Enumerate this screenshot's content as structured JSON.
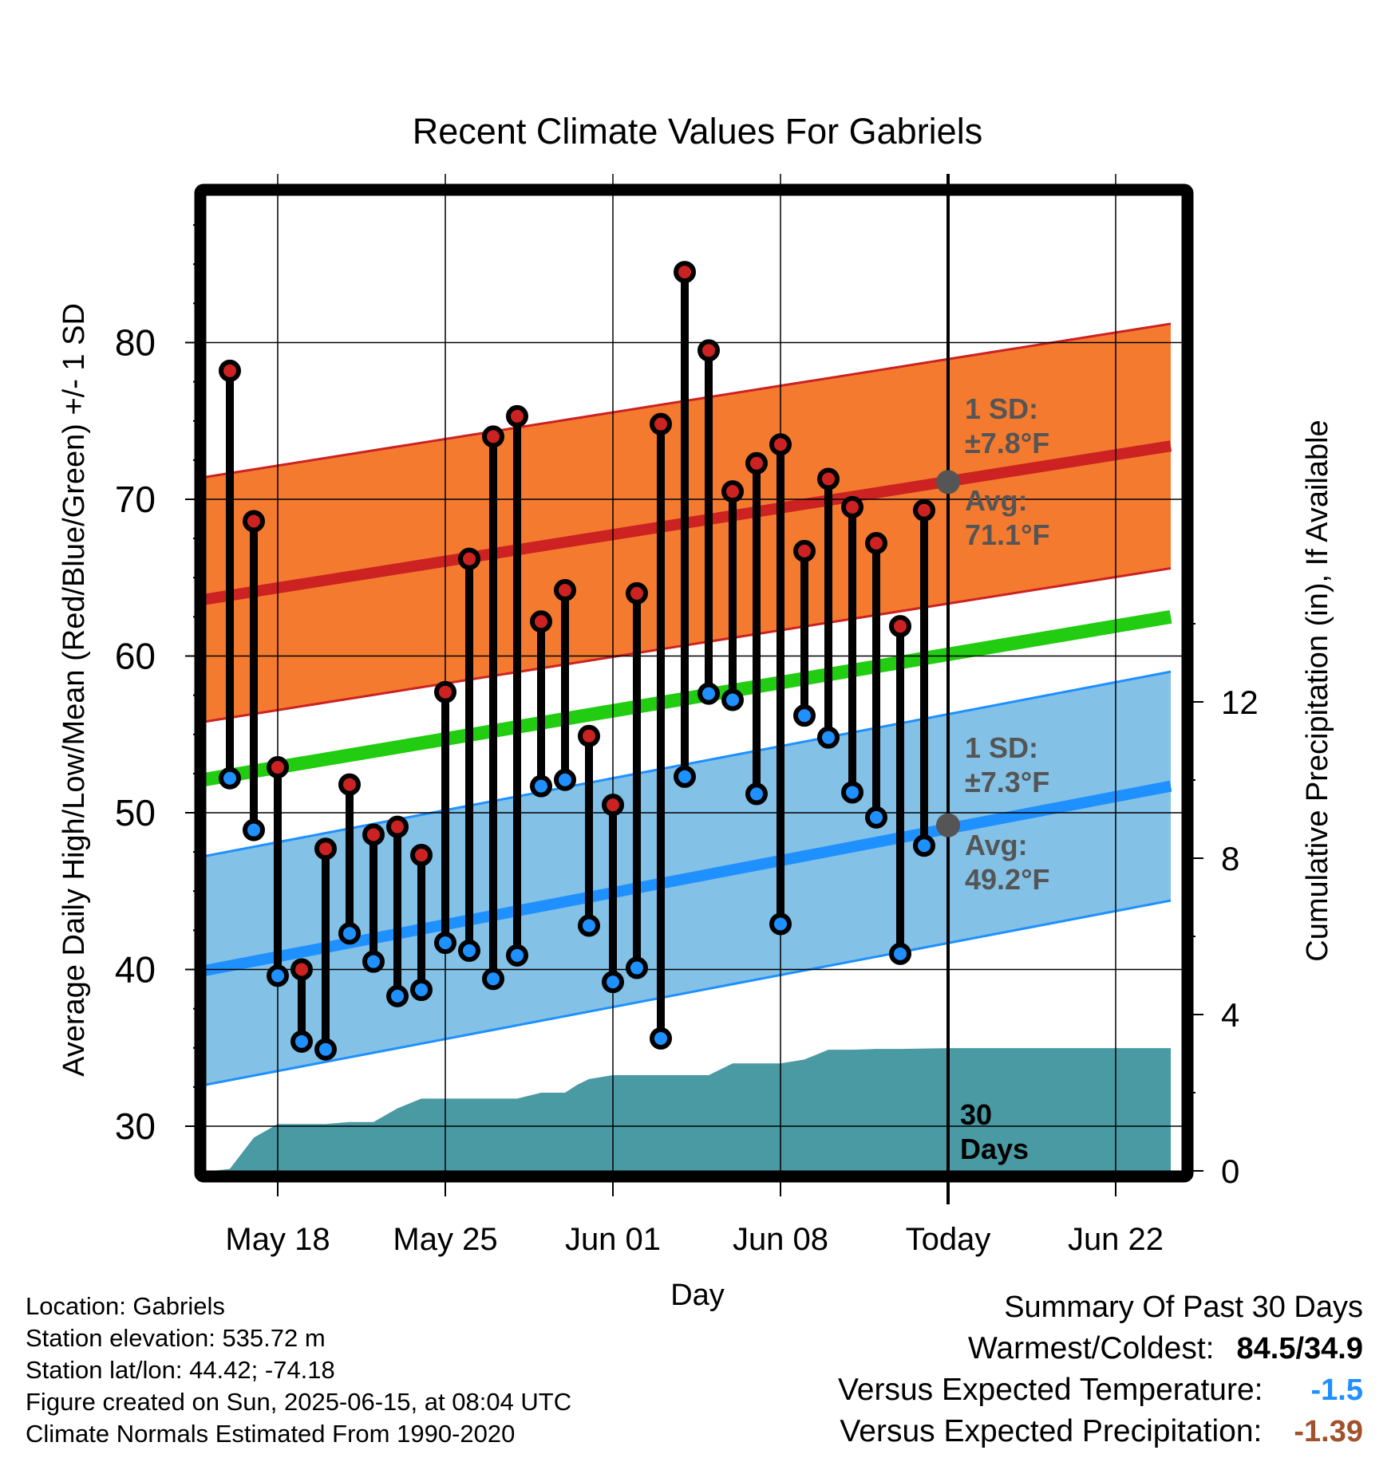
{
  "chart_data": {
    "type": "line",
    "title": "Recent Climate Values For Gabriels",
    "xlabel": "Day",
    "ylabel": "Average Daily High/Low/Mean (Red/Blue/Green) +/- 1 SD",
    "y2label": "Cumulative Precipitation (in), If Available",
    "ylim": [
      27.5,
      89
    ],
    "y2lim": [
      0,
      20.5
    ],
    "yticks": [
      "30",
      "40",
      "50",
      "60",
      "70",
      "80"
    ],
    "y2ticks": [
      "0",
      "4",
      "8",
      "12"
    ],
    "xticks": [
      {
        "day": 17,
        "label": "May 18"
      },
      {
        "day": 24,
        "label": "May 25"
      },
      {
        "day": 31,
        "label": "Jun 01"
      },
      {
        "day": 38,
        "label": "Jun 08"
      },
      {
        "day": 45,
        "label": "Today"
      },
      {
        "day": 52,
        "label": "Jun 22"
      }
    ],
    "xlim": [
      13.5,
      54.3
    ],
    "colors": {
      "high": "#cc2222",
      "low": "#1e90ff",
      "mean": "#22cc11",
      "high_band": "#f47a2f",
      "low_band": "#83c1e6",
      "precip": "#4a9aa4",
      "annotation": "#555555"
    },
    "normals": {
      "high_avg": [
        63.5,
        73.4
      ],
      "high_sd": 7.8,
      "low_avg": [
        39.8,
        51.7
      ],
      "low_sd": 7.3,
      "mean": [
        52.0,
        62.5
      ]
    },
    "series": [
      {
        "name": "High",
        "x": [
          15,
          16,
          17,
          18,
          19,
          20,
          21,
          22,
          23,
          24,
          25,
          26,
          27,
          28,
          29,
          30,
          31,
          32,
          33,
          34,
          35,
          36,
          37,
          38,
          39,
          40,
          41,
          42,
          43,
          44
        ],
        "values": [
          78.2,
          68.6,
          52.9,
          40.0,
          47.7,
          51.8,
          48.6,
          49.1,
          47.3,
          57.7,
          66.2,
          74.0,
          75.3,
          62.2,
          64.2,
          54.9,
          50.5,
          64.0,
          74.8,
          84.5,
          79.5,
          70.5,
          72.3,
          73.5,
          66.7,
          71.3,
          69.5,
          67.2,
          61.9,
          69.3
        ]
      },
      {
        "name": "Low",
        "x": [
          15,
          16,
          17,
          18,
          19,
          20,
          21,
          22,
          23,
          24,
          25,
          26,
          27,
          28,
          29,
          30,
          31,
          32,
          33,
          34,
          35,
          36,
          37,
          38,
          39,
          40,
          41,
          42,
          43,
          44
        ],
        "values": [
          52.2,
          48.9,
          39.6,
          35.4,
          34.9,
          42.3,
          40.5,
          38.3,
          38.7,
          41.7,
          41.2,
          39.4,
          40.9,
          51.7,
          52.1,
          42.8,
          39.2,
          40.1,
          35.6,
          52.3,
          57.6,
          57.2,
          51.2,
          42.9,
          56.2,
          54.8,
          51.3,
          49.7,
          41.0,
          47.9
        ]
      },
      {
        "name": "Cumulative Precipitation",
        "x": [
          14.3,
          15.0,
          16.0,
          17.0,
          18.0,
          19.0,
          20.0,
          21.0,
          22.0,
          23.0,
          24.0,
          25.0,
          26.0,
          27.0,
          28.0,
          29.0,
          29.5,
          30.0,
          31.0,
          32.0,
          33.0,
          34.0,
          35.0,
          36.0,
          37.0,
          38.0,
          39.0,
          40.0,
          41.0,
          42.0,
          43.0,
          44.0,
          45.0,
          54.3
        ],
        "values": [
          0,
          0.05,
          0.85,
          1.2,
          1.2,
          1.2,
          1.25,
          1.25,
          1.6,
          1.85,
          1.85,
          1.85,
          1.85,
          1.85,
          2.0,
          2.0,
          2.2,
          2.35,
          2.45,
          2.45,
          2.45,
          2.45,
          2.45,
          2.75,
          2.75,
          2.75,
          2.85,
          3.1,
          3.1,
          3.12,
          3.12,
          3.13,
          3.14,
          3.14
        ]
      }
    ],
    "annotations": {
      "high_sd": [
        "1 SD:",
        "±7.8°F"
      ],
      "high_avg": [
        "Avg:",
        "71.1°F"
      ],
      "low_sd": [
        "1 SD:",
        "±7.3°F"
      ],
      "low_avg": [
        "Avg:",
        "49.2°F"
      ],
      "window": [
        "30",
        "Days"
      ],
      "today_high": 71.1,
      "today_low": 49.2
    }
  },
  "station_info": [
    "Location: Gabriels",
    "Station elevation: 535.72 m",
    "Station lat/lon: 44.42; -74.18",
    "Figure created on Sun, 2025-06-15, at 08:04 UTC",
    "Climate Normals Estimated From 1990-2020"
  ],
  "summary": {
    "title": "Summary Of Past 30 Days",
    "warmest_coldest_label": "Warmest/Coldest:",
    "warmest_coldest_value": "84.5/34.9",
    "temp_label": "Versus Expected Temperature:",
    "temp_value": "-1.5",
    "temp_color": "#1e90ff",
    "precip_label": "Versus Expected Precipitation:",
    "precip_value": "-1.39",
    "precip_color": "#a0522d"
  }
}
